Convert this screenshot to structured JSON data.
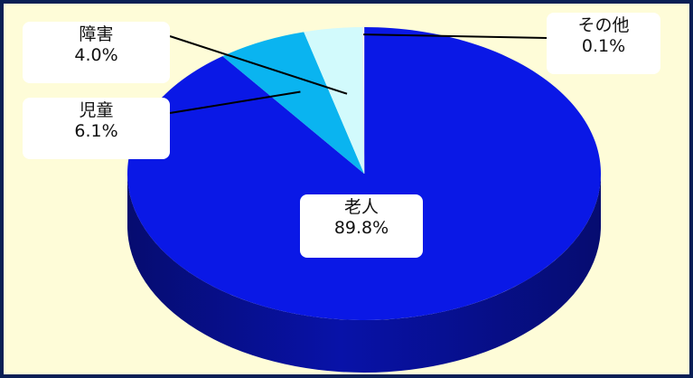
{
  "chart_data": {
    "type": "pie",
    "style": "3d",
    "slices": [
      {
        "label": "老人",
        "value": 89.8,
        "display": "89.8%",
        "color": "#0a18e6",
        "side_color": "#0812a8"
      },
      {
        "label": "児童",
        "value": 6.1,
        "display": "6.1%",
        "color": "#0ab4f0",
        "side_color": "#0a8cc8"
      },
      {
        "label": "障害",
        "value": 4.0,
        "display": "4.0%",
        "color": "#d2fafc",
        "side_color": "#a8dce4"
      },
      {
        "label": "その他",
        "value": 0.1,
        "display": "0.1%",
        "color": "#ffffff",
        "side_color": "#cccccc"
      }
    ],
    "start": "12 o'clock",
    "direction": "clockwise",
    "colors": {
      "background": "#fefcd8",
      "border": "#0a1f55"
    }
  }
}
